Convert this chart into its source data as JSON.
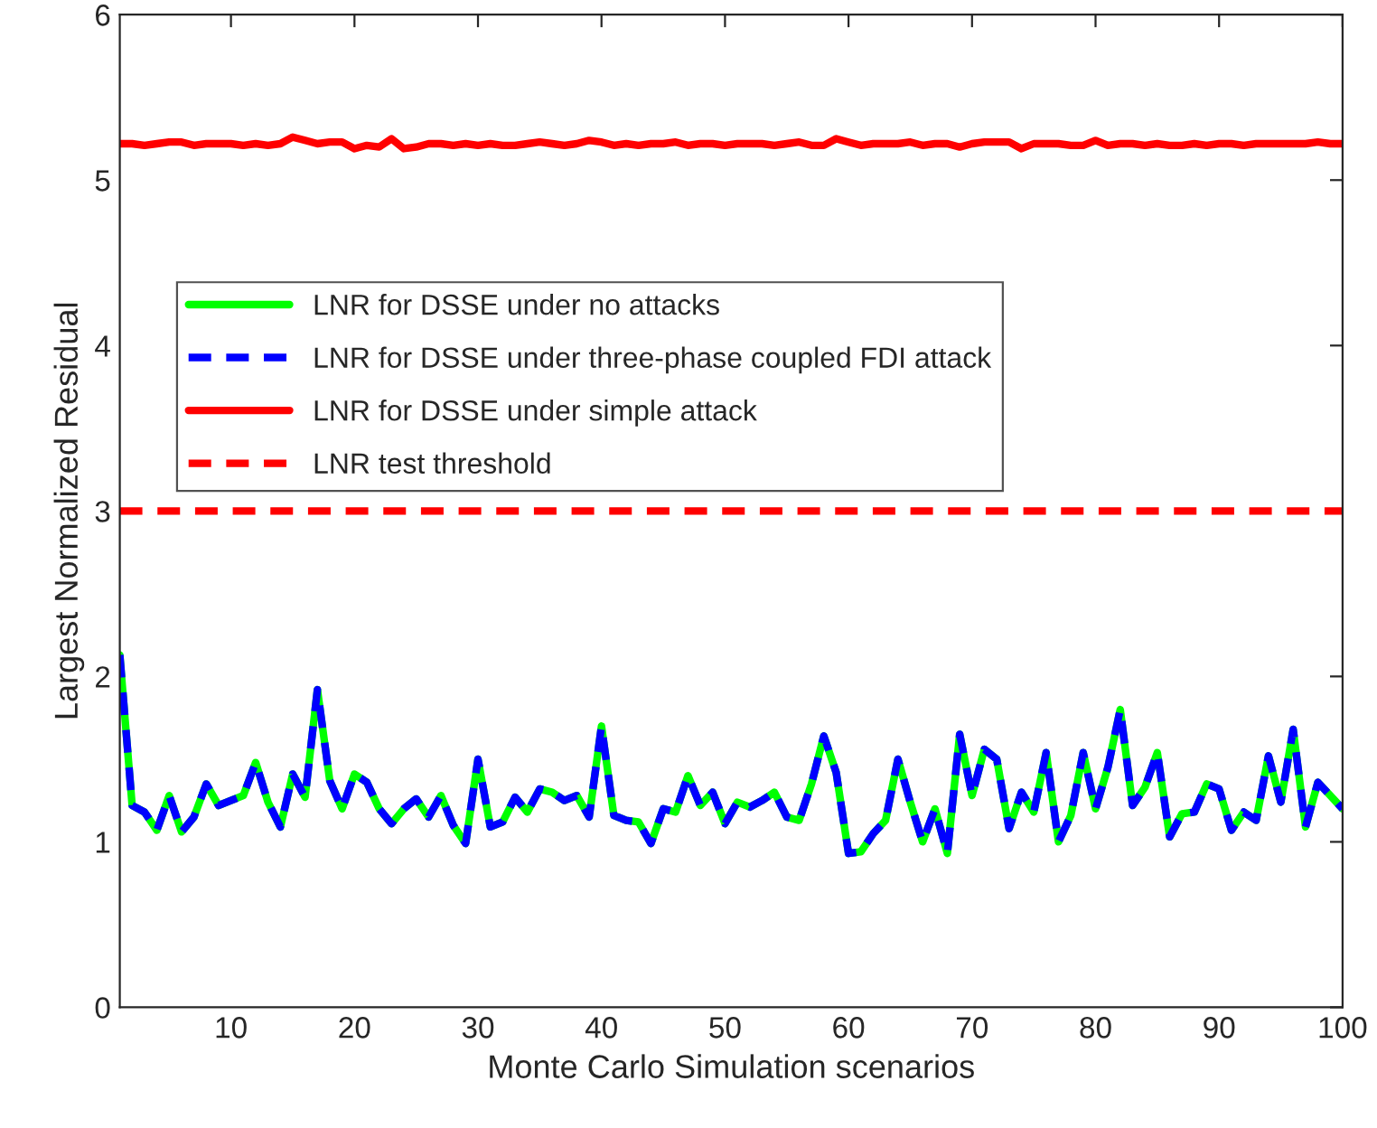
{
  "chart_data": {
    "type": "line",
    "xlabel": "Monte Carlo Simulation scenarios",
    "ylabel": "Largest Normalized Residual",
    "x": [
      1,
      2,
      3,
      4,
      5,
      6,
      7,
      8,
      9,
      10,
      11,
      12,
      13,
      14,
      15,
      16,
      17,
      18,
      19,
      20,
      21,
      22,
      23,
      24,
      25,
      26,
      27,
      28,
      29,
      30,
      31,
      32,
      33,
      34,
      35,
      36,
      37,
      38,
      39,
      40,
      41,
      42,
      43,
      44,
      45,
      46,
      47,
      48,
      49,
      50,
      51,
      52,
      53,
      54,
      55,
      56,
      57,
      58,
      59,
      60,
      61,
      62,
      63,
      64,
      65,
      66,
      67,
      68,
      69,
      70,
      71,
      72,
      73,
      74,
      75,
      76,
      77,
      78,
      79,
      80,
      81,
      82,
      83,
      84,
      85,
      86,
      87,
      88,
      89,
      90,
      91,
      92,
      93,
      94,
      95,
      96,
      97,
      98,
      99,
      100
    ],
    "series": [
      {
        "name": "LNR for DSSE under no attacks",
        "color": "#00ff00",
        "line_style": "solid",
        "values": [
          2.13,
          1.22,
          1.18,
          1.07,
          1.28,
          1.06,
          1.15,
          1.35,
          1.22,
          1.25,
          1.28,
          1.48,
          1.24,
          1.09,
          1.41,
          1.27,
          1.92,
          1.37,
          1.2,
          1.41,
          1.36,
          1.2,
          1.11,
          1.2,
          1.26,
          1.15,
          1.28,
          1.1,
          0.99,
          1.5,
          1.09,
          1.12,
          1.27,
          1.18,
          1.32,
          1.3,
          1.25,
          1.28,
          1.15,
          1.7,
          1.16,
          1.13,
          1.12,
          0.99,
          1.2,
          1.18,
          1.4,
          1.22,
          1.3,
          1.11,
          1.24,
          1.21,
          1.25,
          1.3,
          1.15,
          1.13,
          1.35,
          1.64,
          1.42,
          0.93,
          0.94,
          1.05,
          1.13,
          1.5,
          1.24,
          1.0,
          1.2,
          0.93,
          1.65,
          1.28,
          1.56,
          1.5,
          1.08,
          1.3,
          1.18,
          1.54,
          1.0,
          1.16,
          1.54,
          1.2,
          1.45,
          1.8,
          1.22,
          1.33,
          1.54,
          1.03,
          1.17,
          1.18,
          1.35,
          1.32,
          1.07,
          1.18,
          1.13,
          1.52,
          1.24,
          1.68,
          1.09,
          1.36,
          1.28,
          1.2
        ]
      },
      {
        "name": "LNR for DSSE under three-phase coupled FDI attack",
        "color": "#0000ff",
        "line_style": "dashed",
        "values": [
          2.13,
          1.22,
          1.18,
          1.07,
          1.28,
          1.06,
          1.15,
          1.35,
          1.22,
          1.25,
          1.28,
          1.48,
          1.24,
          1.09,
          1.41,
          1.27,
          1.92,
          1.37,
          1.2,
          1.41,
          1.36,
          1.2,
          1.11,
          1.2,
          1.26,
          1.15,
          1.28,
          1.1,
          0.99,
          1.5,
          1.09,
          1.12,
          1.27,
          1.18,
          1.32,
          1.3,
          1.25,
          1.28,
          1.15,
          1.7,
          1.16,
          1.13,
          1.12,
          0.99,
          1.2,
          1.18,
          1.4,
          1.22,
          1.3,
          1.11,
          1.24,
          1.21,
          1.25,
          1.3,
          1.15,
          1.13,
          1.35,
          1.64,
          1.42,
          0.93,
          0.94,
          1.05,
          1.13,
          1.5,
          1.24,
          1.0,
          1.2,
          0.93,
          1.65,
          1.28,
          1.56,
          1.5,
          1.08,
          1.3,
          1.18,
          1.54,
          1.0,
          1.16,
          1.54,
          1.2,
          1.45,
          1.8,
          1.22,
          1.33,
          1.54,
          1.03,
          1.17,
          1.18,
          1.35,
          1.32,
          1.07,
          1.18,
          1.13,
          1.52,
          1.24,
          1.68,
          1.09,
          1.36,
          1.28,
          1.2
        ]
      },
      {
        "name": "LNR for DSSE under simple attack",
        "color": "#ff0000",
        "line_style": "solid",
        "values": [
          5.22,
          5.22,
          5.21,
          5.22,
          5.23,
          5.23,
          5.21,
          5.22,
          5.22,
          5.22,
          5.21,
          5.22,
          5.21,
          5.22,
          5.26,
          5.24,
          5.22,
          5.23,
          5.23,
          5.19,
          5.21,
          5.2,
          5.25,
          5.19,
          5.2,
          5.22,
          5.22,
          5.21,
          5.22,
          5.21,
          5.22,
          5.21,
          5.21,
          5.22,
          5.23,
          5.22,
          5.21,
          5.22,
          5.24,
          5.23,
          5.21,
          5.22,
          5.21,
          5.22,
          5.22,
          5.23,
          5.21,
          5.22,
          5.22,
          5.21,
          5.22,
          5.22,
          5.22,
          5.21,
          5.22,
          5.23,
          5.21,
          5.21,
          5.25,
          5.23,
          5.21,
          5.22,
          5.22,
          5.22,
          5.23,
          5.21,
          5.22,
          5.22,
          5.2,
          5.22,
          5.23,
          5.23,
          5.23,
          5.19,
          5.22,
          5.22,
          5.22,
          5.21,
          5.21,
          5.24,
          5.21,
          5.22,
          5.22,
          5.21,
          5.22,
          5.21,
          5.21,
          5.22,
          5.21,
          5.22,
          5.22,
          5.21,
          5.22,
          5.22,
          5.22,
          5.22,
          5.22,
          5.23,
          5.22,
          5.22
        ]
      }
    ],
    "ref_lines": [
      {
        "axis": "y",
        "value": 3,
        "label": "LNR test threshold",
        "color": "#ff0000",
        "line_style": "dashed"
      }
    ],
    "xlim": [
      1,
      100
    ],
    "xticks": [
      10,
      20,
      30,
      40,
      50,
      60,
      70,
      80,
      90,
      100
    ],
    "ylim": [
      0,
      6
    ],
    "yticks": [
      0,
      1,
      2,
      3,
      4,
      5,
      6
    ],
    "legend": "top left",
    "grid": false,
    "marker": "none"
  }
}
